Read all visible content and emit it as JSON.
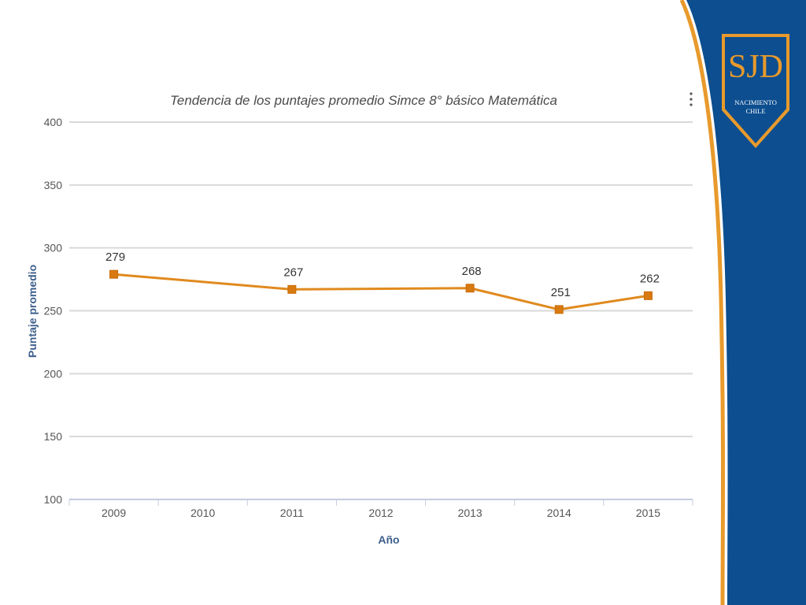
{
  "chart_data": {
    "type": "line",
    "title": "Tendencia de los puntajes promedio Simce 8° básico Matemática",
    "xlabel": "Año",
    "ylabel": "Puntaje promedio",
    "categories": [
      "2009",
      "2010",
      "2011",
      "2012",
      "2013",
      "2014",
      "2015"
    ],
    "ylim": [
      100,
      400
    ],
    "yticks": [
      100,
      150,
      200,
      250,
      300,
      350,
      400
    ],
    "grid": true,
    "series": [
      {
        "points": [
          {
            "x": "2009",
            "y": 279
          },
          {
            "x": "2011",
            "y": 267
          },
          {
            "x": "2013",
            "y": 268
          },
          {
            "x": "2014",
            "y": 251
          },
          {
            "x": "2015",
            "y": 262
          }
        ],
        "color": "#e08a1e"
      }
    ]
  },
  "logo": {
    "text": "SJD",
    "line1": "NACIMIENTO",
    "line2": "CHILE"
  },
  "colors": {
    "accent_orange": "#e89a2c",
    "brand_blue": "#0c4e8f",
    "grid": "#d9d9d9",
    "axis_title": "#3d5f8c"
  }
}
